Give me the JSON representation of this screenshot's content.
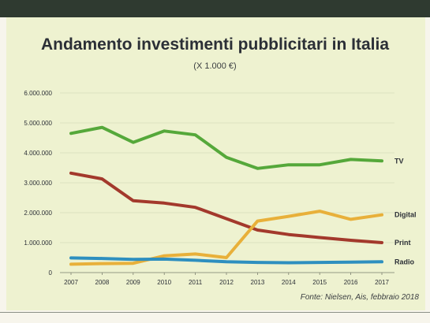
{
  "chart_data": {
    "type": "line",
    "title": "Andamento investimenti pubblicitari in Italia",
    "subtitle": "(X 1.000 €)",
    "source": "Fonte: Nielsen, Ais, febbraio 2018",
    "xlabel": "",
    "ylabel": "",
    "categories": [
      "2007",
      "2008",
      "2009",
      "2010",
      "2011",
      "2012",
      "2013",
      "2014",
      "2015",
      "2016",
      "2017"
    ],
    "yticks": [
      0,
      1000000,
      2000000,
      3000000,
      4000000,
      5000000,
      6000000
    ],
    "ytick_labels": [
      "0",
      "1.000.000",
      "2.000.000",
      "3.000.000",
      "4.000.000",
      "5.000.000",
      "6.000.000"
    ],
    "ylim": [
      0,
      6000000
    ],
    "grid": true,
    "series": [
      {
        "name": "TV",
        "color": "#55a83a",
        "values": [
          4650000,
          4850000,
          4350000,
          4730000,
          4600000,
          3850000,
          3480000,
          3600000,
          3600000,
          3780000,
          3730000
        ]
      },
      {
        "name": "Print",
        "color": "#a3392c",
        "values": [
          3320000,
          3130000,
          2400000,
          2320000,
          2180000,
          1800000,
          1420000,
          1270000,
          1170000,
          1080000,
          1000000
        ]
      },
      {
        "name": "Digital",
        "color": "#e8b03a",
        "values": [
          280000,
          300000,
          310000,
          560000,
          620000,
          500000,
          1720000,
          1880000,
          2050000,
          1780000,
          1930000
        ]
      },
      {
        "name": "Radio",
        "color": "#2e8fbf",
        "values": [
          490000,
          470000,
          440000,
          450000,
          410000,
          360000,
          340000,
          330000,
          340000,
          350000,
          360000
        ]
      }
    ]
  }
}
